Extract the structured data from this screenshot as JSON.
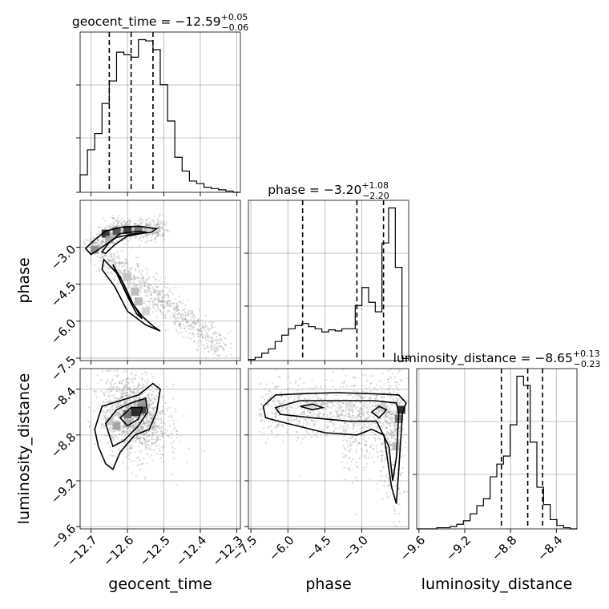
{
  "chart_data": {
    "type": "corner",
    "parameters": [
      {
        "name": "geocent_time",
        "range": [
          -12.73,
          -12.29
        ],
        "ticks": [
          -12.7,
          -12.6,
          -12.5,
          -12.4,
          -12.3
        ],
        "tick_labels": [
          "−12.7",
          "−12.6",
          "−12.5",
          "−12.4",
          "−12.3"
        ],
        "title_value": "−12.59",
        "title_plus": "+0.05",
        "title_minus": "−0.06",
        "quantiles": [
          -12.65,
          -12.59,
          -12.53
        ]
      },
      {
        "name": "phase",
        "range": [
          -7.6,
          -1.1
        ],
        "ticks": [
          -7.5,
          -6.0,
          -4.5,
          -3.0
        ],
        "tick_labels": [
          "−7.5",
          "−6.0",
          "−4.5",
          "−3.0"
        ],
        "title_value": "−3.20",
        "title_plus": "+1.08",
        "title_minus": "−2.20",
        "quantiles": [
          -5.4,
          -3.2,
          -2.12
        ]
      },
      {
        "name": "luminosity_distance",
        "range": [
          -9.62,
          -8.22
        ],
        "ticks": [
          -9.6,
          -9.2,
          -8.8,
          -8.4
        ],
        "tick_labels": [
          "−9.6",
          "−9.2",
          "−8.8",
          "−8.4"
        ],
        "title_value": "−8.65",
        "title_plus": "+0.13",
        "title_minus": "−0.23",
        "quantiles": [
          -8.88,
          -8.65,
          -8.52
        ]
      }
    ],
    "title_template": "{name} = {value}",
    "histograms": {
      "geocent_time": {
        "bins": 22,
        "counts": [
          14,
          34,
          47,
          71,
          89,
          112,
          110,
          108,
          122,
          121,
          114,
          86,
          57,
          28,
          17,
          9,
          7,
          4,
          3,
          2,
          1,
          0
        ]
      },
      "phase": {
        "bins": 24,
        "counts": [
          1,
          3,
          7,
          11,
          18,
          24,
          30,
          33,
          35,
          32,
          30,
          27,
          29,
          28,
          30,
          30,
          52,
          69,
          55,
          46,
          111,
          144,
          88,
          2
        ]
      },
      "luminosity_distance": {
        "bins": 24,
        "counts": [
          0,
          0,
          0,
          1,
          1,
          2,
          4,
          7,
          13,
          20,
          26,
          45,
          56,
          63,
          90,
          132,
          124,
          75,
          36,
          21,
          8,
          3,
          1,
          0
        ]
      }
    },
    "grid": true
  }
}
